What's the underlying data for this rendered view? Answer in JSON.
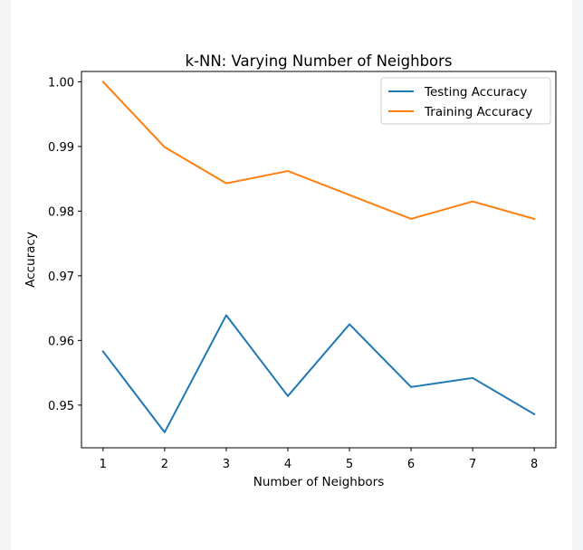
{
  "chart_data": {
    "type": "line",
    "title": "k-NN: Varying Number of Neighbors",
    "xlabel": "Number of Neighbors",
    "ylabel": "Accuracy",
    "x": [
      1,
      2,
      3,
      4,
      5,
      6,
      7,
      8
    ],
    "xlim": [
      0.65,
      8.35
    ],
    "ylim": [
      0.9434,
      1.0016
    ],
    "xticks": [
      1,
      2,
      3,
      4,
      5,
      6,
      7,
      8
    ],
    "yticks": [
      0.95,
      0.96,
      0.97,
      0.98,
      0.99,
      1.0
    ],
    "ytick_labels": [
      "0.95",
      "0.96",
      "0.97",
      "0.98",
      "0.99",
      "1.00"
    ],
    "grid": false,
    "legend_position": "upper-right",
    "series": [
      {
        "name": "Testing Accuracy",
        "color": "#1f77b4",
        "values": [
          0.9583,
          0.9458,
          0.9639,
          0.9514,
          0.9625,
          0.9528,
          0.9542,
          0.9486
        ]
      },
      {
        "name": "Training Accuracy",
        "color": "#ff7f0e",
        "values": [
          1.0,
          0.9899,
          0.9843,
          0.9862,
          0.9825,
          0.9788,
          0.9815,
          0.9788
        ]
      }
    ]
  }
}
